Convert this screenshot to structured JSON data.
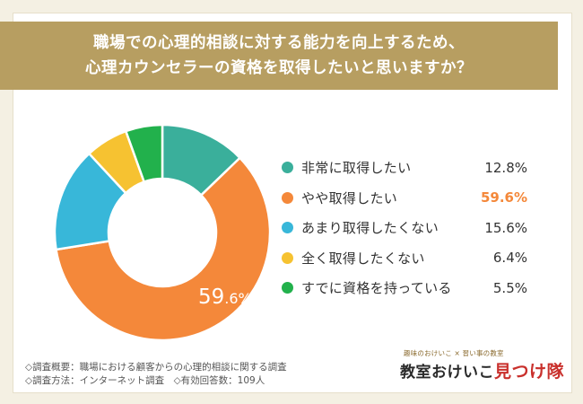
{
  "title": {
    "line1": "職場での心理的相談に対する能力を向上するため、",
    "line2": "心理カウンセラーの資格を取得したいと思いますか？"
  },
  "chart_data": {
    "type": "pie",
    "donut": true,
    "start_angle_deg": 0,
    "categories": [
      "非常に取得したい",
      "やや取得したい",
      "あまり取得したくない",
      "全く取得したくない",
      "すでに資格を持っている"
    ],
    "values": [
      12.8,
      59.6,
      15.6,
      6.4,
      5.5
    ],
    "value_labels": [
      "12.8%",
      "59.6%",
      "15.6%",
      "6.4%",
      "5.5%"
    ],
    "colors": [
      "#3aaf9b",
      "#f4883a",
      "#38b7d9",
      "#f6c231",
      "#22b14c"
    ],
    "highlight_index": 1,
    "slice_label": {
      "number": "59",
      "decimal": ".6%"
    },
    "legend_position": "right"
  },
  "footnote": {
    "line1": "◇調査概要：職場における顧客からの心理的相談に関する調査",
    "line2": "◇調査方法：インターネット調査　◇有効回答数：109人"
  },
  "logo": {
    "tagline": "趣味のおけいこ × 習い事の教室",
    "name_main": "教室おけいこ",
    "name_accent": "見つけ隊"
  }
}
